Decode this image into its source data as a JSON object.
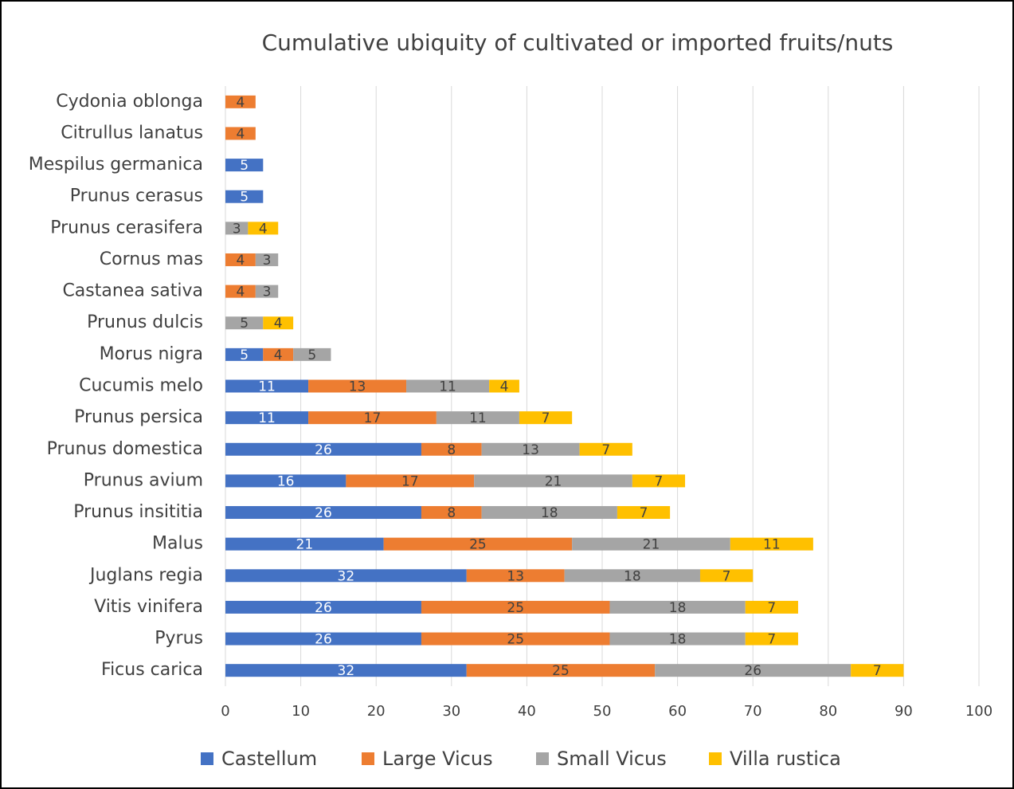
{
  "chart_data": {
    "type": "stacked-barh",
    "title": "Cumulative ubiquity of cultivated or imported fruits/nuts",
    "categories": [
      "Cydonia oblonga",
      "Citrullus lanatus",
      "Mespilus germanica",
      "Prunus cerasus",
      "Prunus cerasifera",
      "Cornus mas",
      "Castanea sativa",
      "Prunus dulcis",
      "Morus nigra",
      "Cucumis melo",
      "Prunus persica",
      "Prunus domestica",
      "Prunus avium",
      "Prunus insititia",
      "Malus",
      "Juglans regia",
      "Vitis vinifera",
      "Pyrus",
      "Ficus carica"
    ],
    "series": [
      {
        "name": "Castellum",
        "color": "#4472c4",
        "values": [
          null,
          null,
          5,
          5,
          null,
          null,
          null,
          null,
          5,
          11,
          11,
          26,
          16,
          26,
          21,
          32,
          26,
          26,
          32
        ]
      },
      {
        "name": "Large Vicus",
        "color": "#ed7d31",
        "values": [
          4,
          4,
          null,
          null,
          null,
          4,
          4,
          null,
          4,
          13,
          17,
          8,
          17,
          8,
          25,
          13,
          25,
          25,
          25
        ]
      },
      {
        "name": "Small Vicus",
        "color": "#a5a5a5",
        "values": [
          null,
          null,
          null,
          null,
          3,
          3,
          3,
          5,
          5,
          11,
          11,
          13,
          21,
          18,
          21,
          18,
          18,
          18,
          26
        ]
      },
      {
        "name": "Villa rustica",
        "color": "#ffc000",
        "values": [
          null,
          null,
          null,
          null,
          4,
          null,
          null,
          4,
          null,
          4,
          7,
          7,
          7,
          7,
          11,
          7,
          7,
          7,
          7
        ]
      }
    ],
    "xlim": [
      0,
      100
    ],
    "xticks": [
      0,
      10,
      20,
      30,
      40,
      50,
      60,
      70,
      80,
      90,
      100
    ],
    "grid": true,
    "legend": "bottom"
  }
}
